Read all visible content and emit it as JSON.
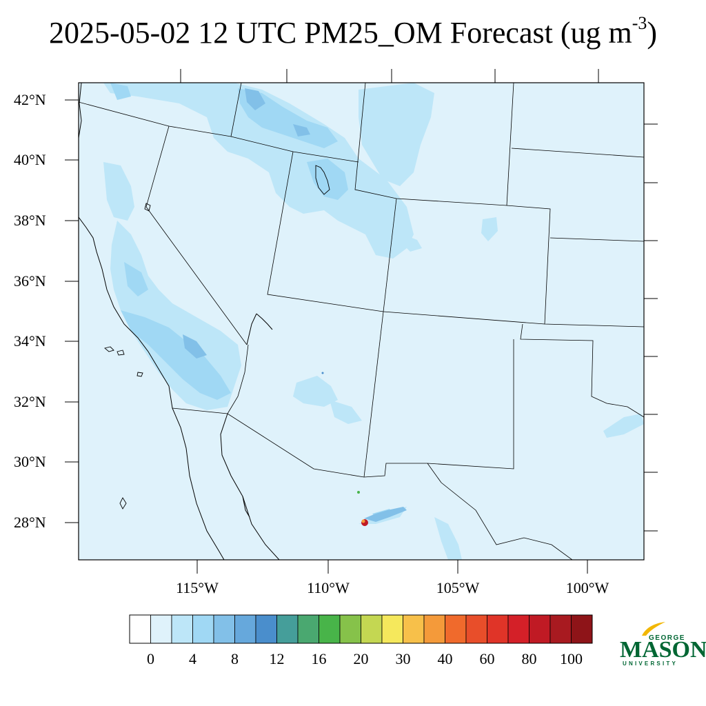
{
  "title": {
    "main": "2025-05-02 12 UTC PM25_OM Forecast (ug m",
    "superscript": "-3",
    "close": ")"
  },
  "map": {
    "background_color": "#dff2fb",
    "lat_labels": [
      "42°N",
      "40°N",
      "38°N",
      "36°N",
      "34°N",
      "32°N",
      "30°N",
      "28°N"
    ],
    "lon_labels": [
      "115°W",
      "110°W",
      "105°W",
      "100°W"
    ]
  },
  "colorbar": {
    "colors": [
      "#ffffff",
      "#dff2fb",
      "#bde6f8",
      "#a0d8f4",
      "#82c0e8",
      "#66a8dc",
      "#4a8ecc",
      "#459e9a",
      "#4aa870",
      "#48b449",
      "#86c24a",
      "#c4d752",
      "#f5e85c",
      "#f7c04a",
      "#f49a3a",
      "#f06a2c",
      "#e84e2a",
      "#e03428",
      "#d42028",
      "#c01a24",
      "#a81a20",
      "#8e1418"
    ],
    "labels": [
      "0",
      "4",
      "8",
      "12",
      "16",
      "20",
      "30",
      "40",
      "60",
      "80",
      "100"
    ]
  },
  "logo": {
    "line1": "GEORGE",
    "line2": "MASON",
    "line3": "UNIVERSITY",
    "color": "#006633",
    "accent": "#f2b705"
  }
}
